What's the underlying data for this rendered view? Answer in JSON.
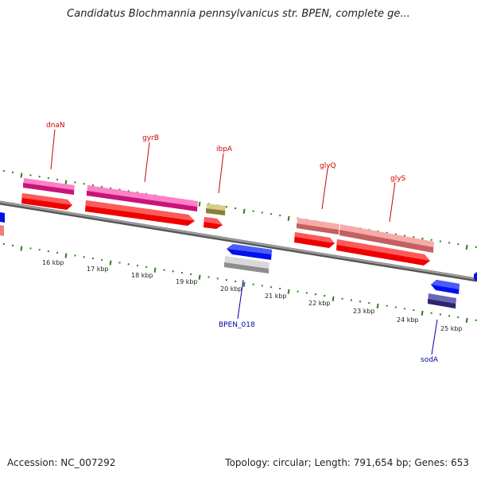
{
  "header": {
    "title": "Candidatus Blochmannia pennsylvanicus str. BPEN, complete ge..."
  },
  "footer": {
    "accession_text": "Accession: NC_007292",
    "topology_text": "Topology: circular; Length: 791,654 bp; Genes: 653"
  },
  "colors": {
    "backbone": "#7a7a7a",
    "tick_green": "#2e7d1e",
    "label_red": "#cc0000",
    "label_blue": "#0000b0",
    "gene_pink": "#e8209a",
    "gene_red": "#ee0000",
    "gene_salmon": "#ea7f7f",
    "gene_olive": "#b0a35a",
    "gene_blue": "#0010ee",
    "gene_gray": "#b5b5b5",
    "gene_navy": "#3c3a88"
  },
  "scale": {
    "tick_labels": [
      "16 kbp",
      "17 kbp",
      "18 kbp",
      "19 kbp",
      "20 kbp",
      "21 kbp",
      "22 kbp",
      "23 kbp",
      "24 kbp",
      "25 kbp"
    ]
  },
  "genes": [
    {
      "name": "dnaN",
      "color": "#cc0000"
    },
    {
      "name": "gyrB",
      "color": "#cc0000"
    },
    {
      "name": "ibpA",
      "color": "#cc0000"
    },
    {
      "name": "glyQ",
      "color": "#cc0000"
    },
    {
      "name": "glyS",
      "color": "#cc0000"
    },
    {
      "name": "BPEN_018",
      "color": "#0000b0"
    },
    {
      "name": "sodA",
      "color": "#0000b0"
    }
  ]
}
